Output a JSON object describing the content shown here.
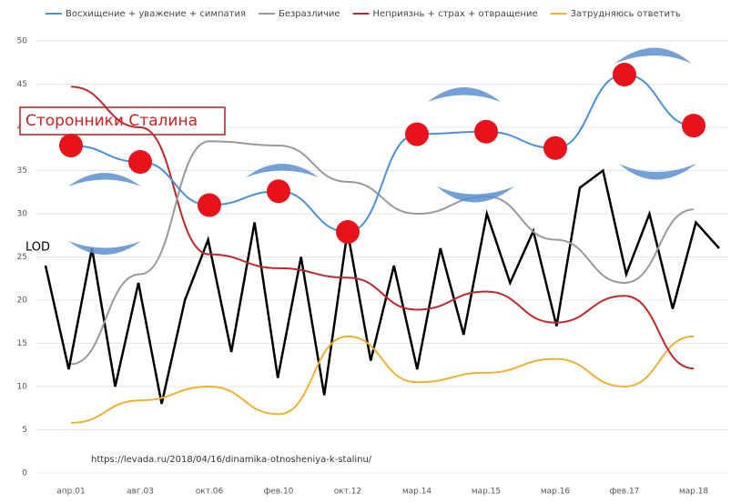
{
  "chart_data": {
    "type": "line",
    "categories": [
      "апр.01",
      "авг.03",
      "окт.06",
      "фев.10",
      "окт.12",
      "мар.14",
      "мар.15",
      "мар.16",
      "фев.17",
      "мар.18"
    ],
    "series": [
      {
        "name": "Восхищение + уважение + симпатия",
        "color": "#4a90d9",
        "values": [
          37.9,
          36,
          31,
          32.6,
          27.9,
          39.2,
          39.5,
          37.6,
          46.1,
          40.2
        ]
      },
      {
        "name": "Безразличие",
        "color": "#999999",
        "values": [
          12.6,
          23,
          38.4,
          37.9,
          33.7,
          30,
          32,
          27,
          22,
          30.5
        ]
      },
      {
        "name": "Неприязнь + страх + отвращение",
        "color": "#c0282d",
        "values": [
          44.7,
          40,
          25.3,
          23.7,
          22.6,
          18.9,
          21,
          17.4,
          20.5,
          12.1
        ]
      },
      {
        "name": "Затрудняюсь ответить",
        "color": "#f0b030",
        "values": [
          5.8,
          8.4,
          10,
          6.8,
          15.8,
          10.5,
          11.6,
          13.2,
          10,
          15.8
        ]
      }
    ],
    "lod": {
      "label": "LOD",
      "color": "#000000",
      "values": [
        24,
        12,
        26,
        10,
        22,
        8,
        20,
        27,
        14,
        29,
        11,
        25,
        9,
        28,
        13,
        24,
        12,
        26,
        16,
        30,
        22,
        28,
        17,
        33,
        35,
        23,
        30,
        19,
        29,
        26
      ]
    },
    "annotation": "Сторонники Сталина",
    "source": "https://levada.ru/2018/04/16/dinamika-otnosheniya-k-stalinu/",
    "ylim": [
      0,
      50
    ],
    "yticks": [
      0,
      5,
      10,
      15,
      20,
      25,
      30,
      35,
      40,
      45,
      50
    ],
    "grid": true
  }
}
